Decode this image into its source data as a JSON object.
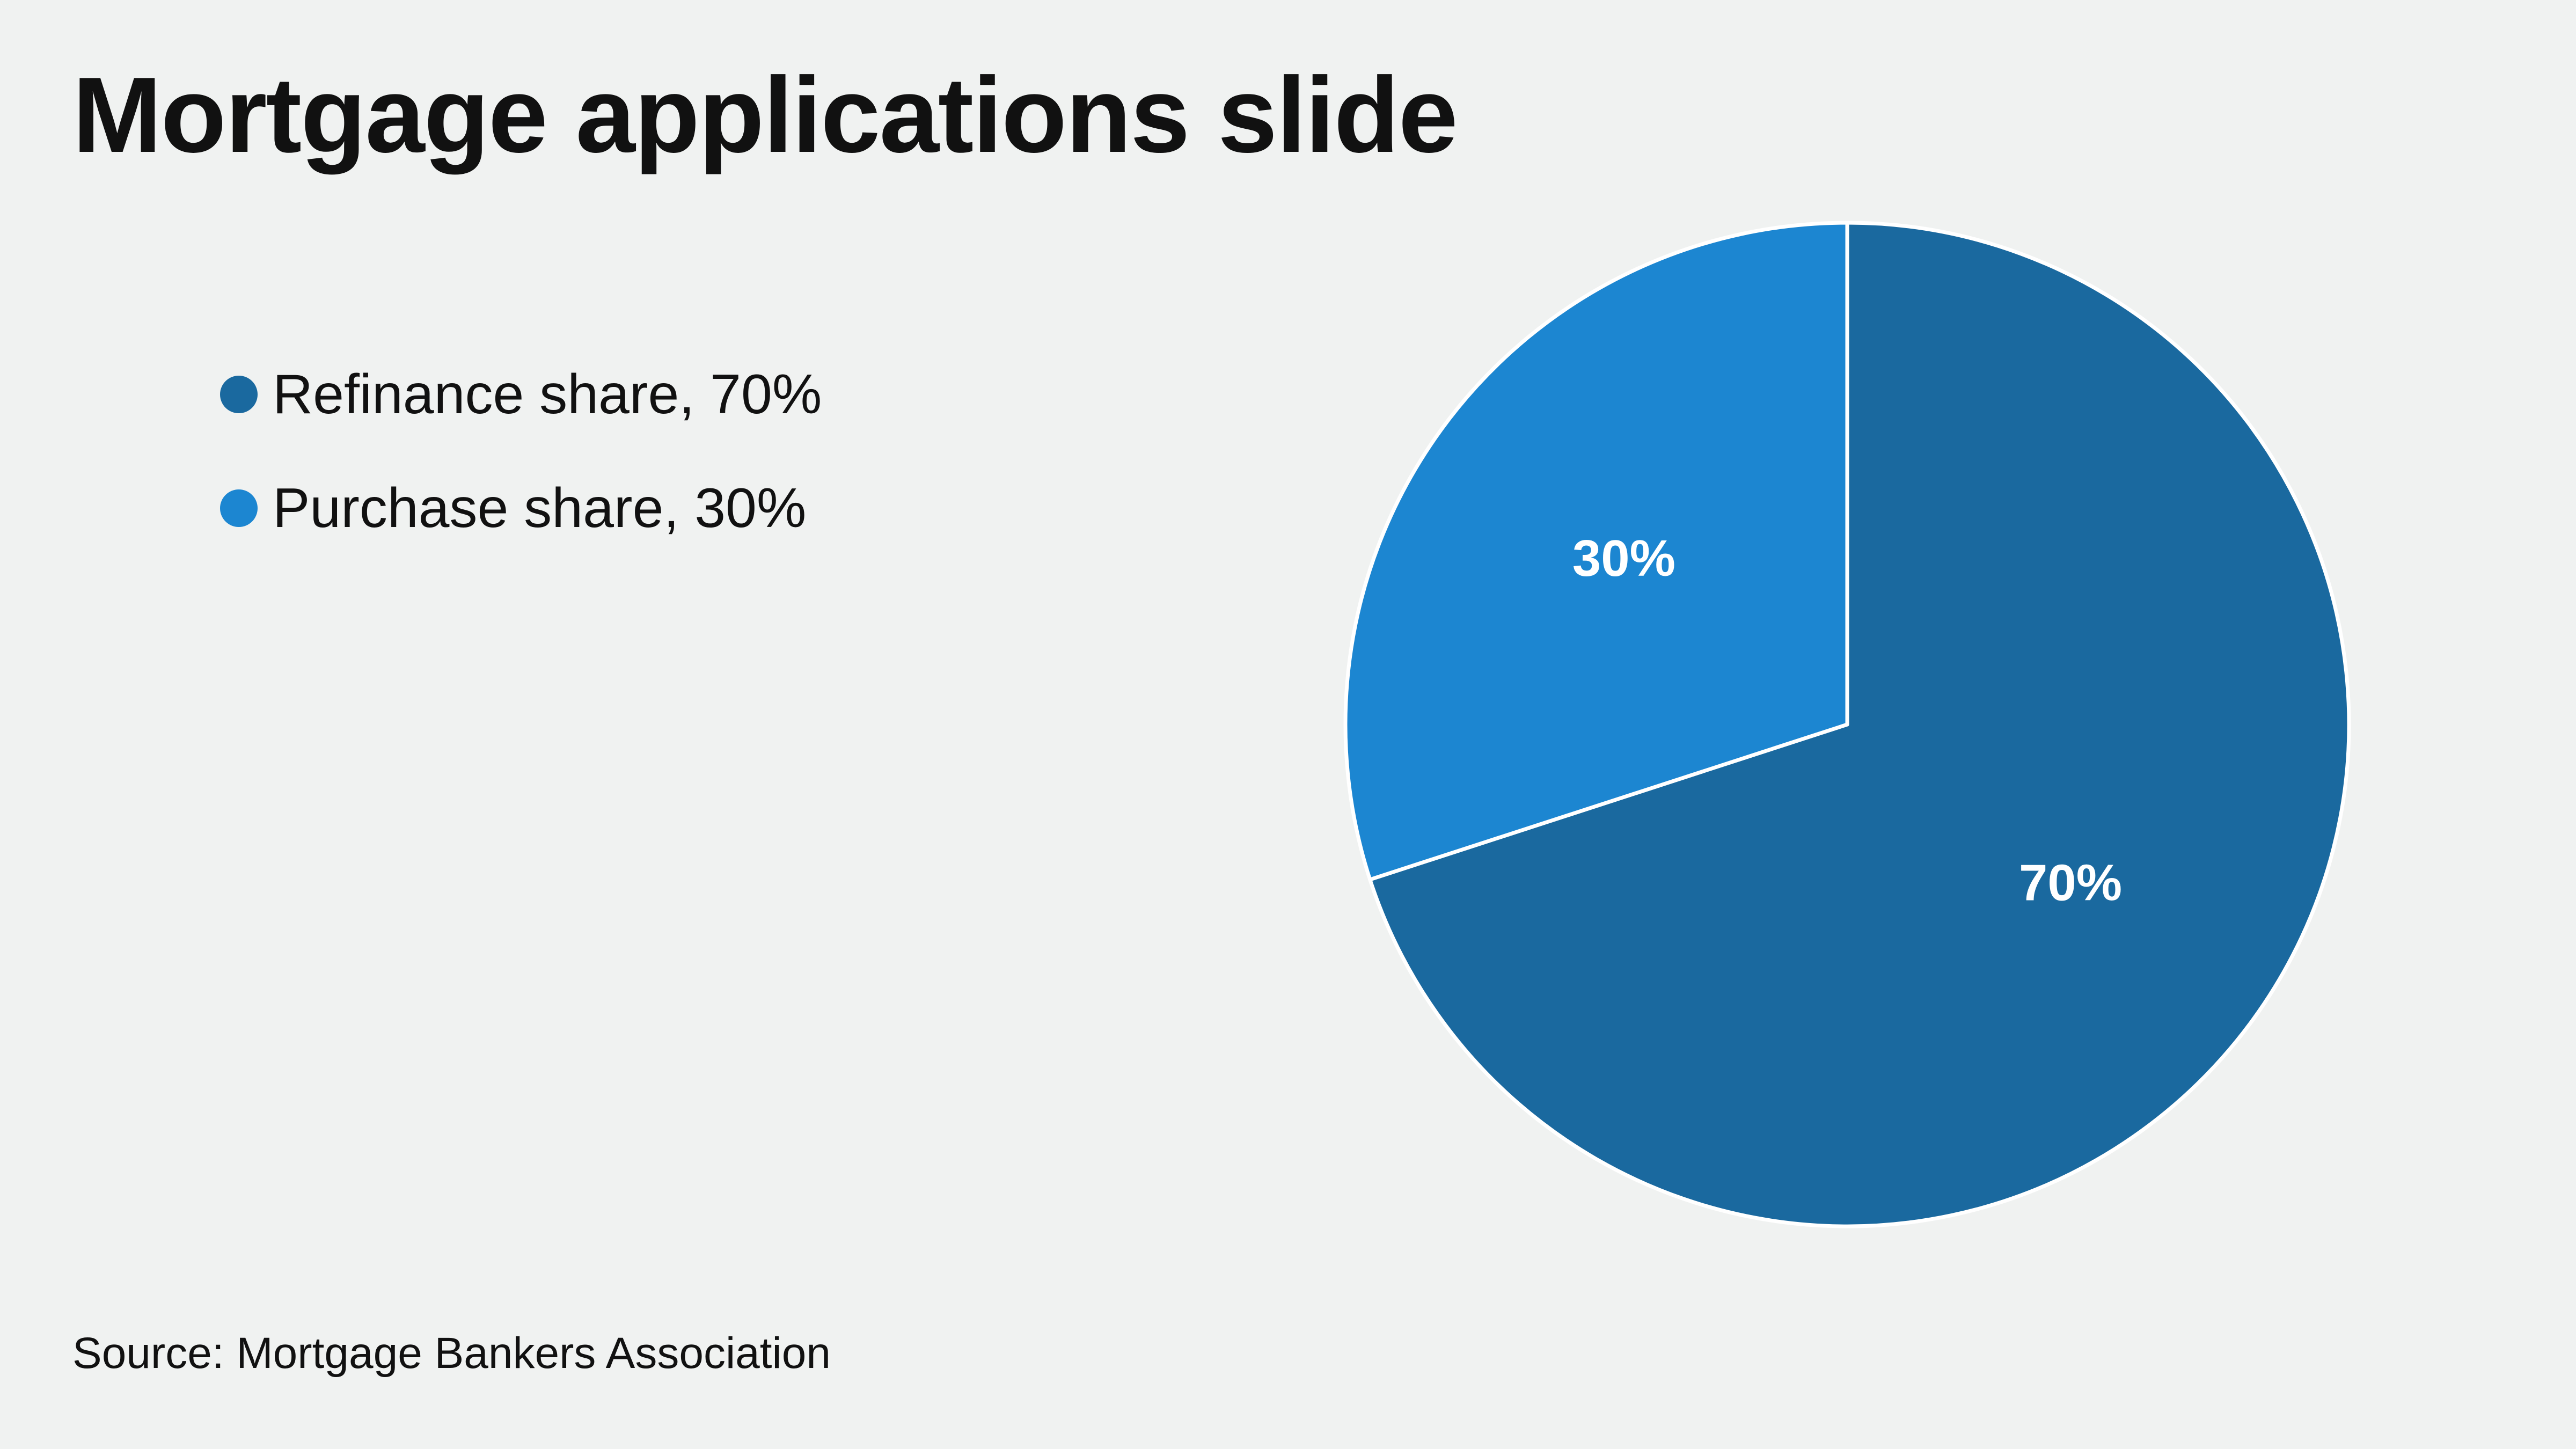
{
  "title": "Mortgage applications slide",
  "source": "Source: Mortgage Bankers Association",
  "chart_data": {
    "type": "pie",
    "title": "Mortgage applications slide",
    "categories": [
      "Refinance share, 70%",
      "Purchase share, 30%"
    ],
    "values": [
      70,
      30
    ],
    "slice_labels": [
      "70%",
      "30%"
    ],
    "colors": [
      "#1a699f",
      "#1c86d1"
    ],
    "start_angle_deg": 0,
    "direction": "clockwise",
    "legend_placement": "left"
  },
  "legend": {
    "items": [
      {
        "label": "Refinance share, 70%",
        "color": "#1a699f"
      },
      {
        "label": "Purchase share, 30%",
        "color": "#1c86d1"
      }
    ]
  }
}
